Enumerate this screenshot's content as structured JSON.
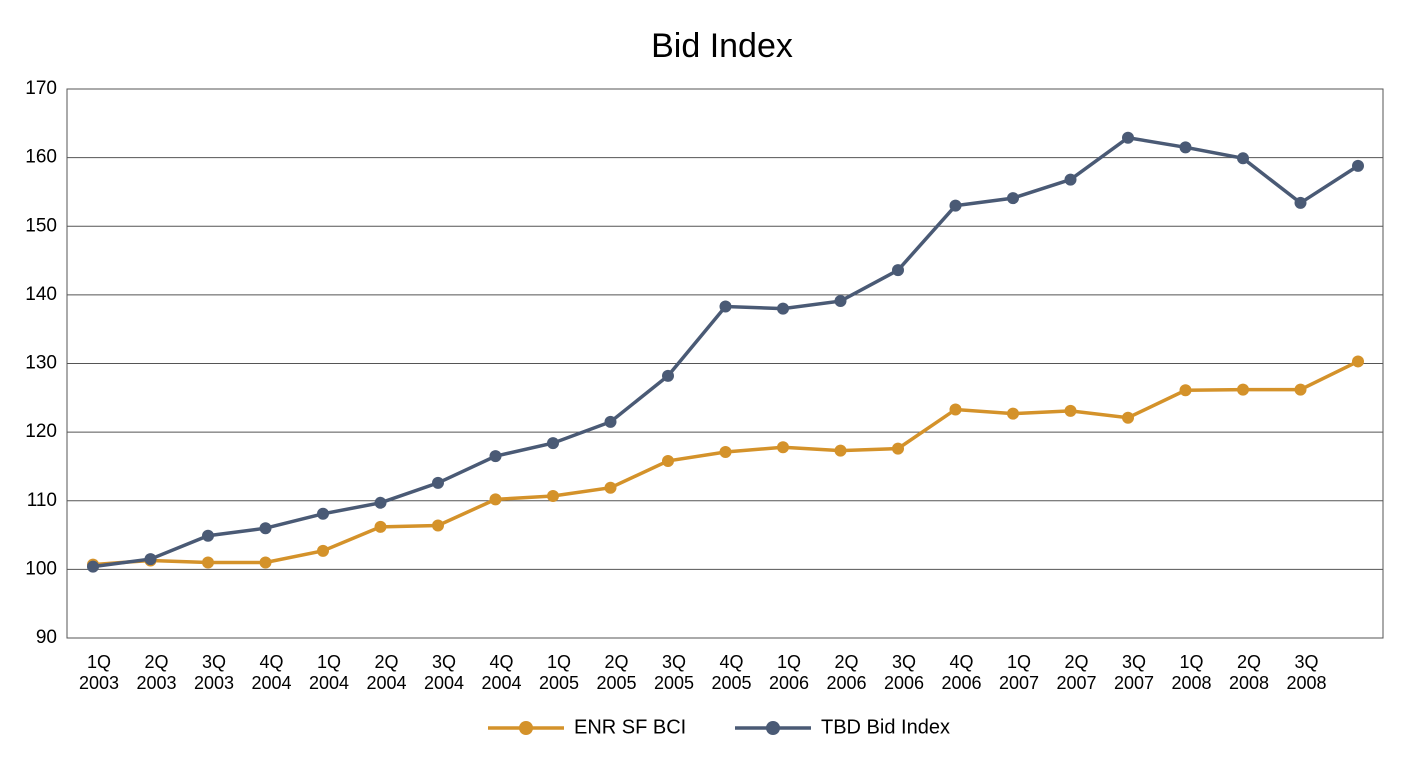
{
  "chart_data": {
    "type": "line",
    "title": "Bid Index",
    "categories": [
      "1Q 2003",
      "2Q 2003",
      "3Q 2003",
      "4Q 2004",
      "1Q 2004",
      "2Q 2004",
      "3Q 2004",
      "4Q 2004",
      "1Q 2005",
      "2Q 2005",
      "3Q 2005",
      "4Q 2005",
      "1Q 2006",
      "2Q 2006",
      "3Q 2006",
      "4Q 2006",
      "1Q 2007",
      "2Q 2007",
      "3Q 2007",
      "1Q 2008",
      "2Q 2008",
      "3Q 2008",
      null
    ],
    "series": [
      {
        "name": "ENR SF BCI",
        "color": "#d4922a",
        "values": [
          100.7,
          101.3,
          101.0,
          101.0,
          102.7,
          106.2,
          106.4,
          110.2,
          110.7,
          111.9,
          115.8,
          117.1,
          117.8,
          117.3,
          117.6,
          123.3,
          122.7,
          123.1,
          122.1,
          126.1,
          126.2,
          126.2,
          130.3
        ]
      },
      {
        "name": "TBD Bid Index",
        "color": "#4a5a75",
        "values": [
          100.4,
          101.5,
          104.9,
          106.0,
          108.1,
          109.7,
          112.6,
          116.5,
          118.4,
          121.5,
          128.2,
          138.3,
          138.0,
          139.1,
          143.6,
          153.0,
          154.1,
          156.8,
          162.9,
          161.5,
          159.9,
          153.4,
          158.8
        ]
      }
    ],
    "ylim": [
      90,
      170
    ],
    "yticks": [
      90,
      100,
      110,
      120,
      130,
      140,
      150,
      160,
      170
    ],
    "grid": true,
    "legend": "bottom"
  }
}
